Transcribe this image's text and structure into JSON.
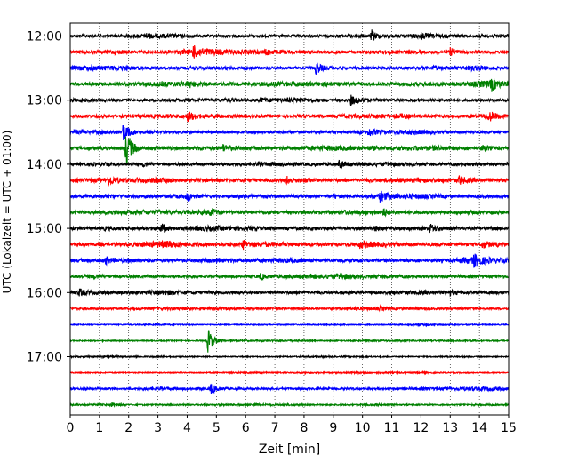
{
  "chart_data": {
    "type": "line",
    "title": "",
    "xlabel": "Zeit  [min]",
    "ylabel": "UTC (Lokalzeit = UTC + 01:00)",
    "xlim": [
      0,
      15
    ],
    "x_ticks": [
      "0",
      "1",
      "2",
      "3",
      "4",
      "5",
      "6",
      "7",
      "8",
      "9",
      "10",
      "11",
      "12",
      "13",
      "14",
      "15"
    ],
    "y_ticks": [
      "12:00",
      "13:00",
      "14:00",
      "15:00",
      "16:00",
      "17:00"
    ],
    "grid": "vertical dotted",
    "trace_interval_minutes": 15,
    "color_cycle": [
      "#000000",
      "#ff0000",
      "#0000ff",
      "#008000"
    ],
    "traces": [
      {
        "start": "12:00",
        "color": "#000000",
        "amp": 0.8,
        "events": [
          [
            2.6,
            1.1
          ],
          [
            10.3,
            3.2
          ],
          [
            12.0,
            1.0
          ]
        ]
      },
      {
        "start": "12:15",
        "color": "#ff0000",
        "amp": 0.9,
        "events": [
          [
            4.2,
            3.0
          ],
          [
            6.7,
            1.2
          ],
          [
            13.0,
            2.0
          ]
        ]
      },
      {
        "start": "12:30",
        "color": "#0000ff",
        "amp": 0.9,
        "events": [
          [
            8.4,
            3.4
          ],
          [
            12.4,
            1.2
          ]
        ]
      },
      {
        "start": "12:45",
        "color": "#008000",
        "amp": 1.0,
        "events": [
          [
            4.0,
            2.0
          ],
          [
            14.4,
            2.8
          ]
        ]
      },
      {
        "start": "13:00",
        "color": "#000000",
        "amp": 0.8,
        "events": [
          [
            9.6,
            2.5
          ],
          [
            6.5,
            1.0
          ]
        ]
      },
      {
        "start": "13:15",
        "color": "#ff0000",
        "amp": 0.9,
        "events": [
          [
            4.0,
            3.2
          ],
          [
            14.3,
            2.8
          ]
        ]
      },
      {
        "start": "13:30",
        "color": "#0000ff",
        "amp": 0.8,
        "events": [
          [
            1.8,
            5.0
          ],
          [
            10.2,
            2.0
          ]
        ]
      },
      {
        "start": "13:45",
        "color": "#008000",
        "amp": 1.0,
        "events": [
          [
            1.9,
            12.0
          ],
          [
            5.2,
            1.8
          ],
          [
            14.1,
            1.8
          ]
        ]
      },
      {
        "start": "14:00",
        "color": "#000000",
        "amp": 0.8,
        "events": [
          [
            2.5,
            1.4
          ],
          [
            9.2,
            2.6
          ]
        ]
      },
      {
        "start": "14:15",
        "color": "#ff0000",
        "amp": 1.0,
        "events": [
          [
            1.3,
            2.6
          ],
          [
            7.4,
            2.0
          ],
          [
            13.3,
            2.2
          ]
        ]
      },
      {
        "start": "14:30",
        "color": "#0000ff",
        "amp": 0.9,
        "events": [
          [
            4.0,
            2.2
          ],
          [
            9.0,
            1.0
          ],
          [
            10.6,
            2.2
          ]
        ]
      },
      {
        "start": "14:45",
        "color": "#008000",
        "amp": 0.9,
        "events": [
          [
            4.8,
            2.0
          ],
          [
            10.7,
            2.0
          ]
        ]
      },
      {
        "start": "15:00",
        "color": "#000000",
        "amp": 0.9,
        "events": [
          [
            3.1,
            2.8
          ],
          [
            10.4,
            1.6
          ],
          [
            12.3,
            2.0
          ]
        ]
      },
      {
        "start": "15:15",
        "color": "#ff0000",
        "amp": 1.0,
        "events": [
          [
            5.9,
            2.2
          ],
          [
            9.9,
            1.4
          ],
          [
            14.1,
            2.0
          ]
        ]
      },
      {
        "start": "15:30",
        "color": "#0000ff",
        "amp": 1.0,
        "events": [
          [
            1.2,
            2.0
          ],
          [
            13.8,
            2.6
          ]
        ]
      },
      {
        "start": "15:45",
        "color": "#008000",
        "amp": 0.8,
        "events": [
          [
            6.5,
            1.6
          ]
        ]
      },
      {
        "start": "16:00",
        "color": "#000000",
        "amp": 0.8,
        "events": [
          [
            0.3,
            2.0
          ],
          [
            13.0,
            1.0
          ]
        ]
      },
      {
        "start": "16:15",
        "color": "#ff0000",
        "amp": 0.6,
        "events": [
          [
            10.6,
            1.0
          ]
        ]
      },
      {
        "start": "16:30",
        "color": "#0000ff",
        "amp": 0.3,
        "events": []
      },
      {
        "start": "16:45",
        "color": "#008000",
        "amp": 0.35,
        "events": [
          [
            4.7,
            8.0
          ]
        ]
      },
      {
        "start": "17:00",
        "color": "#000000",
        "amp": 0.3,
        "events": []
      },
      {
        "start": "17:15",
        "color": "#ff0000",
        "amp": 0.3,
        "events": []
      },
      {
        "start": "17:30",
        "color": "#0000ff",
        "amp": 0.6,
        "events": [
          [
            4.8,
            3.2
          ]
        ]
      },
      {
        "start": "17:45",
        "color": "#008000",
        "amp": 0.4,
        "events": [
          [
            1.4,
            1.2
          ]
        ]
      }
    ]
  }
}
